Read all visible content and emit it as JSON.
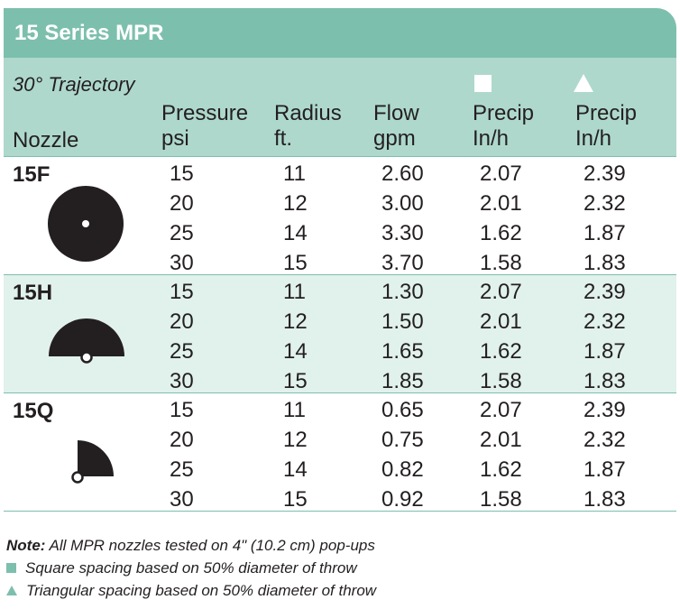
{
  "title": "15 Series MPR",
  "trajectory": "30° Trajectory",
  "headers": {
    "nozzle": "Nozzle",
    "pressure": [
      "Pressure",
      "psi"
    ],
    "radius": [
      "Radius",
      "ft."
    ],
    "flow": [
      "Flow",
      "gpm"
    ],
    "precip_square": [
      "Precip",
      "In/h"
    ],
    "precip_triangle": [
      "Precip",
      "In/h"
    ]
  },
  "colors": {
    "accent": "#7dbfad",
    "header_bg": "#aed8cc",
    "shaded_row": "#e1f1ec",
    "text": "#231f20"
  },
  "nozzles": [
    {
      "name": "15F",
      "icon": "full-circle-icon",
      "rows": [
        {
          "pressure": "15",
          "radius": "11",
          "flow": "2.60",
          "precip_sq": "2.07",
          "precip_tri": "2.39"
        },
        {
          "pressure": "20",
          "radius": "12",
          "flow": "3.00",
          "precip_sq": "2.01",
          "precip_tri": "2.32"
        },
        {
          "pressure": "25",
          "radius": "14",
          "flow": "3.30",
          "precip_sq": "1.62",
          "precip_tri": "1.87"
        },
        {
          "pressure": "30",
          "radius": "15",
          "flow": "3.70",
          "precip_sq": "1.58",
          "precip_tri": "1.83"
        }
      ]
    },
    {
      "name": "15H",
      "icon": "half-circle-icon",
      "rows": [
        {
          "pressure": "15",
          "radius": "11",
          "flow": "1.30",
          "precip_sq": "2.07",
          "precip_tri": "2.39"
        },
        {
          "pressure": "20",
          "radius": "12",
          "flow": "1.50",
          "precip_sq": "2.01",
          "precip_tri": "2.32"
        },
        {
          "pressure": "25",
          "radius": "14",
          "flow": "1.65",
          "precip_sq": "1.62",
          "precip_tri": "1.87"
        },
        {
          "pressure": "30",
          "radius": "15",
          "flow": "1.85",
          "precip_sq": "1.58",
          "precip_tri": "1.83"
        }
      ]
    },
    {
      "name": "15Q",
      "icon": "quarter-circle-icon",
      "rows": [
        {
          "pressure": "15",
          "radius": "11",
          "flow": "0.65",
          "precip_sq": "2.07",
          "precip_tri": "2.39"
        },
        {
          "pressure": "20",
          "radius": "12",
          "flow": "0.75",
          "precip_sq": "2.01",
          "precip_tri": "2.32"
        },
        {
          "pressure": "25",
          "radius": "14",
          "flow": "0.82",
          "precip_sq": "1.62",
          "precip_tri": "1.87"
        },
        {
          "pressure": "30",
          "radius": "15",
          "flow": "0.92",
          "precip_sq": "1.58",
          "precip_tri": "1.83"
        }
      ]
    }
  ],
  "notes": {
    "note_label": "Note:",
    "note_text": " All MPR nozzles tested on 4\" (10.2 cm) pop-ups",
    "square_text": "Square spacing based on 50% diameter of throw",
    "triangle_text": "Triangular spacing based on 50% diameter of throw"
  }
}
